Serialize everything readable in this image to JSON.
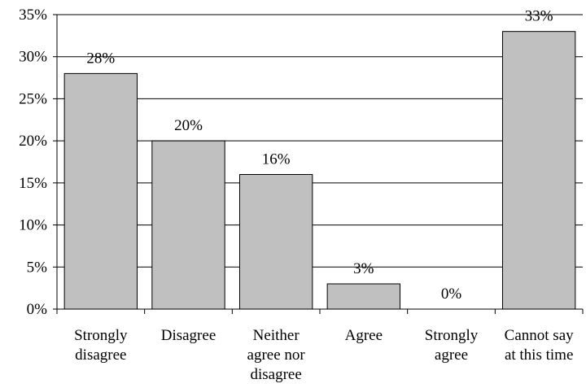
{
  "chart_data": {
    "type": "bar",
    "categories": [
      [
        "Strongly",
        "disagree"
      ],
      [
        "Disagree"
      ],
      [
        "Neither",
        "agree nor",
        "disagree"
      ],
      [
        "Agree"
      ],
      [
        "Strongly",
        "agree"
      ],
      [
        "Cannot say",
        "at this time"
      ]
    ],
    "values": [
      28,
      20,
      16,
      3,
      0,
      33
    ],
    "value_labels": [
      "28%",
      "20%",
      "16%",
      "3%",
      "0%",
      "33%"
    ],
    "y_ticks": [
      "0%",
      "5%",
      "10%",
      "15%",
      "20%",
      "25%",
      "30%",
      "35%"
    ],
    "ylim": [
      0,
      35
    ],
    "y_step": 5,
    "grid": true,
    "title": "",
    "xlabel": "",
    "ylabel": "",
    "bar_color": "#c0c0c0",
    "edge_color": "#000000"
  }
}
